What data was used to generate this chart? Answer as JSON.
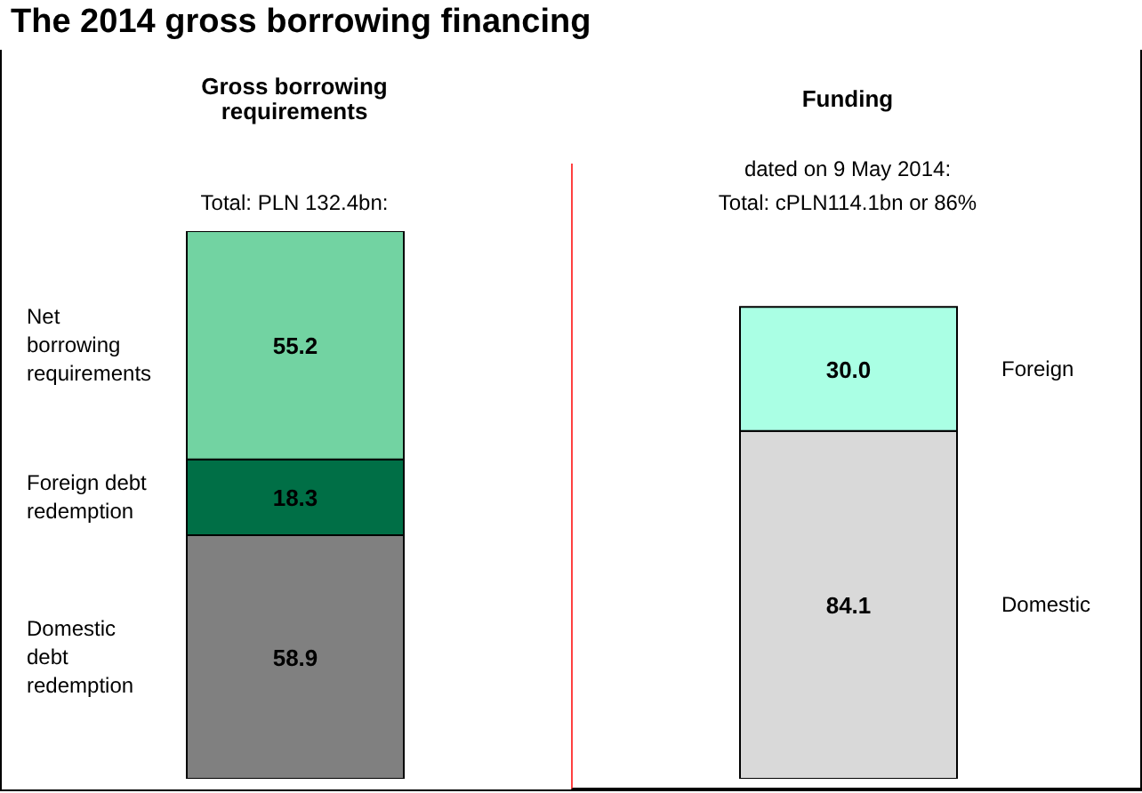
{
  "chart_data": {
    "type": "bar",
    "title": "The 2014 gross borrowing financing",
    "stacked": true,
    "legend": false,
    "grid": false,
    "categories": [
      "Gross borrowing requirements",
      "Funding"
    ],
    "series": [
      {
        "name": "Domestic debt redemption",
        "color": "#808080",
        "values": [
          58.9,
          null
        ],
        "value_labels": [
          "58.9",
          null
        ]
      },
      {
        "name": "Foreign debt redemption",
        "color": "#006f46",
        "values": [
          18.3,
          null
        ],
        "value_labels": [
          "18.3",
          null
        ]
      },
      {
        "name": "Net borrowing requirements",
        "color": "#72d3a2",
        "values": [
          55.2,
          null
        ],
        "value_labels": [
          "55.2",
          null
        ]
      },
      {
        "name": "Domestic",
        "color": "#d9d9d9",
        "values": [
          null,
          84.1
        ],
        "value_labels": [
          null,
          "84.1"
        ]
      },
      {
        "name": "Foreign",
        "color": "#aaffe4",
        "values": [
          null,
          30.0
        ],
        "value_labels": [
          null,
          "30.0"
        ]
      }
    ],
    "annotations": [
      "Total: PLN 132.4bn:",
      "dated on 9 May 2014:",
      "Total: cPLN114.1bn or 86%"
    ]
  }
}
